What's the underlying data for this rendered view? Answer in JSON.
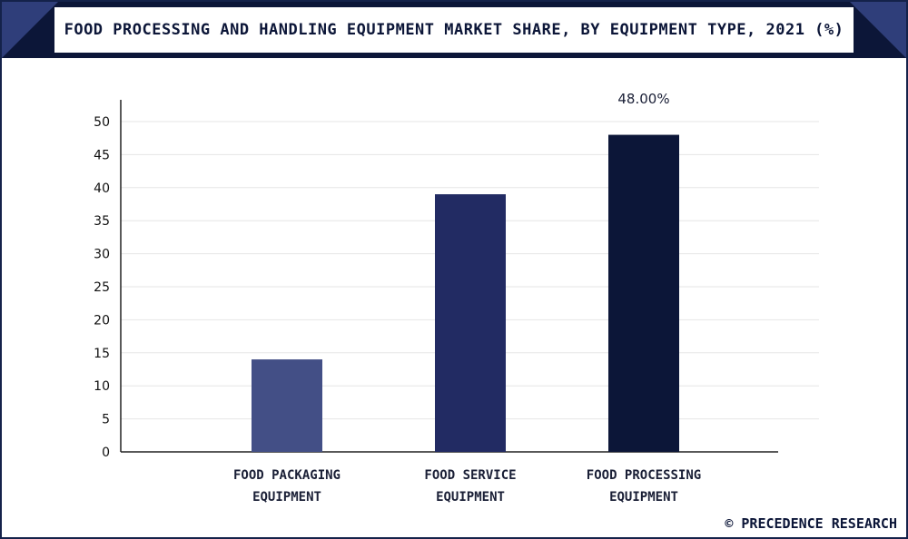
{
  "header": {
    "title": "FOOD PROCESSING AND HANDLING EQUIPMENT MARKET SHARE, BY EQUIPMENT TYPE, 2021 (%)"
  },
  "footer": {
    "copyright": "© PRECEDENCE RESEARCH"
  },
  "colors": {
    "header_dark": "#0c1638",
    "header_accent": "#2f3e7a",
    "bars": [
      "#434f86",
      "#222b63",
      "#0c1638"
    ],
    "grid": "#e6e6e6",
    "axis": "#222222"
  },
  "chart_data": {
    "type": "bar",
    "title": "FOOD PROCESSING AND HANDLING EQUIPMENT MARKET SHARE, BY EQUIPMENT TYPE, 2021 (%)",
    "categories": [
      [
        "FOOD PACKAGING",
        "EQUIPMENT"
      ],
      [
        "FOOD SERVICE",
        "EQUIPMENT"
      ],
      [
        "FOOD PROCESSING",
        "EQUIPMENT"
      ]
    ],
    "values": [
      14,
      39,
      48
    ],
    "data_labels": [
      "",
      "",
      "48.00%"
    ],
    "ylim": [
      0,
      50
    ],
    "yticks": [
      0,
      5,
      10,
      15,
      20,
      25,
      30,
      35,
      40,
      45,
      50
    ],
    "grid": true,
    "legend": "none"
  }
}
